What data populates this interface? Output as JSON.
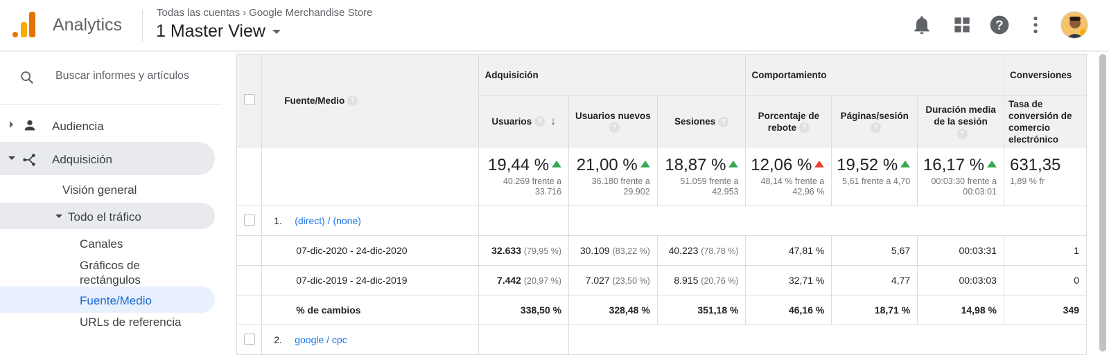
{
  "header": {
    "app_name": "Analytics",
    "breadcrumb": [
      "Todas las cuentas",
      "Google Merchandise Store"
    ],
    "view": "1 Master View",
    "icons": [
      "bell-icon",
      "apps-icon",
      "help-icon",
      "more-vert-icon",
      "avatar"
    ]
  },
  "sidebar": {
    "search_placeholder": "Buscar informes y artículos",
    "items": {
      "audiencia": "Audiencia",
      "adquisicion": "Adquisición",
      "vision": "Visión general",
      "todo": "Todo el tráfico",
      "canales": "Canales",
      "graficos": "Gráficos de rectángulos",
      "fuente": "Fuente/Medio",
      "urls": "URLs de referencia"
    }
  },
  "table": {
    "dimension_header": "Fuente/Medio",
    "groups": {
      "adquisicion": "Adquisición",
      "comportamiento": "Comportamiento",
      "conversiones": "Conversiones"
    },
    "columns": {
      "usuarios": "Usuarios",
      "usuarios_nuevos": "Usuarios nuevos",
      "sesiones": "Sesiones",
      "rebote": "Porcentaje de rebote",
      "paginas": "Páginas/sesión",
      "duracion": "Duración media de la sesión",
      "tasa": "Tasa de conversión de comercio electrónico"
    },
    "summary": [
      {
        "big": "19,44 %",
        "trend": "up",
        "sub": "40.269 frente a 33.716"
      },
      {
        "big": "21,00 %",
        "trend": "up",
        "sub": "36.180 frente a 29.902"
      },
      {
        "big": "18,87 %",
        "trend": "up",
        "sub": "51.059 frente a 42.953"
      },
      {
        "big": "12,06 %",
        "trend": "down",
        "sub": "48,14 % frente a 42,96 %"
      },
      {
        "big": "19,52 %",
        "trend": "up",
        "sub": "5,61 frente a 4,70"
      },
      {
        "big": "16,17 %",
        "trend": "up",
        "sub": "00:03:30 frente a 00:03:01"
      },
      {
        "big": "631,35",
        "trend": "",
        "sub": "1,89 % fr"
      }
    ],
    "row1": {
      "num": "1.",
      "label": "(direct) / (none)"
    },
    "period1": {
      "label": "07-dic-2020 - 24-dic-2020",
      "usuarios": "32.633",
      "usuarios_pct": "(79,95 %)",
      "nuevos": "30.109",
      "nuevos_pct": "(83,22 %)",
      "sesiones": "40.223",
      "sesiones_pct": "(78,78 %)",
      "rebote": "47,81 %",
      "paginas": "5,67",
      "duracion": "00:03:31",
      "tasa": "1"
    },
    "period2": {
      "label": "07-dic-2019 - 24-dic-2019",
      "usuarios": "7.442",
      "usuarios_pct": "(20,97 %)",
      "nuevos": "7.027",
      "nuevos_pct": "(23,50 %)",
      "sesiones": "8.915",
      "sesiones_pct": "(20,76 %)",
      "rebote": "32,71 %",
      "paginas": "4,77",
      "duracion": "00:03:03",
      "tasa": "0"
    },
    "changes": {
      "label": "% de cambios",
      "usuarios": "338,50 %",
      "nuevos": "328,48 %",
      "sesiones": "351,18 %",
      "rebote": "46,16 %",
      "paginas": "18,71 %",
      "duracion": "14,98 %",
      "tasa": "349"
    },
    "row2": {
      "num": "2.",
      "label": "google / cpc"
    }
  }
}
